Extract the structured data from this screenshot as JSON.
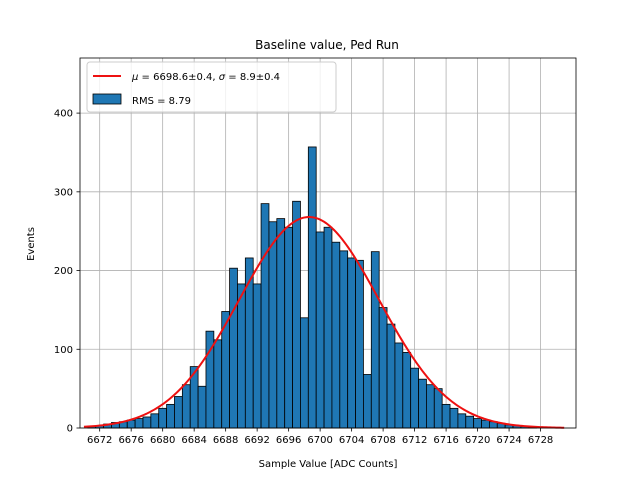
{
  "chart_data": {
    "type": "bar",
    "title": "Baseline value, Ped Run",
    "xlabel": "Sample Value [ADC Counts]",
    "ylabel": "Events",
    "xlim": [
      6669.5,
      6732.5
    ],
    "ylim": [
      0,
      470
    ],
    "xticks": [
      6672,
      6676,
      6680,
      6684,
      6688,
      6692,
      6696,
      6700,
      6704,
      6708,
      6712,
      6716,
      6720,
      6724,
      6728
    ],
    "yticks": [
      0,
      100,
      200,
      300,
      400
    ],
    "grid": true,
    "legend_position": "top-left",
    "bin_width": 1,
    "histogram": {
      "name": "RMS = 8.79",
      "color": "#1f77b4",
      "edgecolor": "#000000",
      "bin_centers": [
        6671,
        6672,
        6673,
        6674,
        6675,
        6676,
        6677,
        6678,
        6679,
        6680,
        6681,
        6682,
        6683,
        6684,
        6685,
        6686,
        6687,
        6688,
        6689,
        6690,
        6691,
        6692,
        6693,
        6694,
        6695,
        6696,
        6697,
        6698,
        6699,
        6700,
        6701,
        6702,
        6703,
        6704,
        6705,
        6706,
        6707,
        6708,
        6709,
        6710,
        6711,
        6712,
        6713,
        6714,
        6715,
        6716,
        6717,
        6718,
        6719,
        6720,
        6721,
        6722,
        6723,
        6724,
        6725,
        6726,
        6727
      ],
      "counts": [
        2,
        3,
        5,
        7,
        8,
        10,
        12,
        14,
        18,
        25,
        30,
        40,
        55,
        78,
        53,
        123,
        112,
        148,
        203,
        183,
        216,
        183,
        285,
        262,
        266,
        255,
        288,
        140,
        357,
        249,
        255,
        236,
        225,
        216,
        213,
        68,
        224,
        153,
        132,
        108,
        96,
        76,
        62,
        55,
        50,
        30,
        25,
        18,
        15,
        12,
        10,
        8,
        6,
        4,
        3,
        2,
        1
      ]
    },
    "fit": {
      "name": "μ = 6698.6±0.4, σ = 8.9±0.4",
      "label_mu": "μ",
      "label_sigma": "σ",
      "mu_text": " = 6698.6±0.4, ",
      "sigma_text": " = 8.9±0.4",
      "color": "#ee1111",
      "mu": 6698.6,
      "sigma": 8.9,
      "amplitude": 268,
      "x_start": 6670,
      "x_end": 6731
    }
  }
}
